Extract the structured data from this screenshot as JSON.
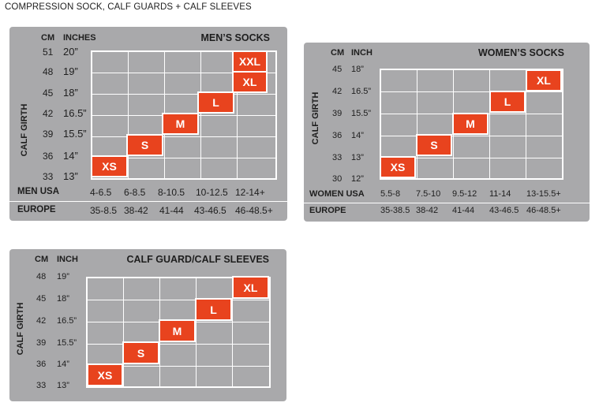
{
  "page_title": "COMPRESSION SOCK, CALF GUARDS + CALF SLEEVES",
  "panels": {
    "men": {
      "title": "MEN’S SOCKS",
      "cm_header": "CM",
      "inch_header": "INCHES",
      "axis_label": "CALF GIRTH",
      "cm": [
        "51",
        "48",
        "45",
        "42",
        "39",
        "36",
        "33"
      ],
      "inches": [
        "20”",
        "19”",
        "18”",
        "16.5”",
        "15.5”",
        "14”",
        "13”"
      ],
      "sizes": [
        "XS",
        "S",
        "M",
        "L",
        "XL",
        "XXL"
      ],
      "row1_label": "MEN USA",
      "row1": [
        "4-6.5",
        "6-8.5",
        "8-10.5",
        "10-12.5",
        "12-14+"
      ],
      "row2_label": "EUROPE",
      "row2": [
        "35-8.5",
        "38-42",
        "41-44",
        "43-46.5",
        "46-48.5+"
      ]
    },
    "women": {
      "title": "WOMEN’S SOCKS",
      "cm_header": "CM",
      "inch_header": "INCH",
      "axis_label": "CALF GIRTH",
      "cm": [
        "45",
        "42",
        "39",
        "36",
        "33",
        "30"
      ],
      "inches": [
        "18”",
        "16.5”",
        "15.5”",
        "14”",
        "13”",
        "12”"
      ],
      "sizes": [
        "XS",
        "S",
        "M",
        "L",
        "XL"
      ],
      "row1_label": "WOMEN USA",
      "row1": [
        "5.5-8",
        "7.5-10",
        "9.5-12",
        "11-14",
        "13-15.5+"
      ],
      "row2_label": "EUROPE",
      "row2": [
        "35-38.5",
        "38-42",
        "41-44",
        "43-46.5",
        "46-48.5+"
      ]
    },
    "calf": {
      "title": "CALF GUARD/CALF SLEEVES",
      "cm_header": "CM",
      "inch_header": "INCH",
      "axis_label": "CALF GIRTH",
      "cm": [
        "48",
        "45",
        "42",
        "39",
        "36",
        "33"
      ],
      "inches": [
        "19”",
        "18”",
        "16.5”",
        "15.5”",
        "14”",
        "13”"
      ],
      "sizes": [
        "XS",
        "S",
        "M",
        "L",
        "XL"
      ]
    }
  },
  "colors": {
    "panel": "#a9a9ab",
    "size_box": "#e8431e",
    "grid_line": "#ffffff"
  }
}
